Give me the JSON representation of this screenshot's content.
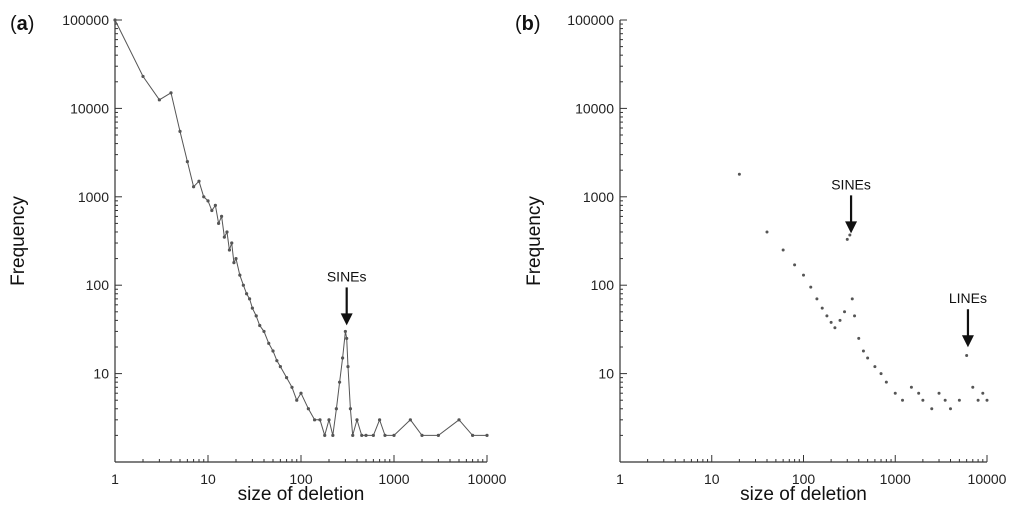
{
  "chart_data": [
    {
      "type": "line",
      "panel_label": "a",
      "xlabel": "size of deletion",
      "ylabel": "Frequency",
      "x_scale": "log",
      "y_scale": "log",
      "xlim": [
        1,
        10000
      ],
      "ylim": [
        1,
        100000
      ],
      "x_ticks": [
        1,
        10,
        100,
        1000,
        10000
      ],
      "x_tick_labels": [
        "1",
        "10",
        "100",
        "1000",
        "10000"
      ],
      "y_ticks": [
        10,
        100,
        1000,
        10000,
        100000
      ],
      "y_tick_labels": [
        "10",
        "100",
        "1000",
        "10000",
        "100000"
      ],
      "grid": false,
      "series_color": "#555555",
      "annotations": [
        {
          "text": "SINEs",
          "x": 310,
          "y": 30,
          "arrow": "down"
        }
      ],
      "series": [
        {
          "x": [
            1,
            2,
            3,
            4,
            5,
            6,
            7,
            8,
            9,
            10,
            11,
            12,
            13,
            14,
            15,
            16,
            17,
            18,
            19,
            20,
            22,
            24,
            26,
            28,
            30,
            33,
            36,
            40,
            45,
            50,
            55,
            60,
            70,
            80,
            90,
            100,
            120,
            140,
            160,
            180,
            200,
            220,
            240,
            260,
            280,
            300,
            310,
            320,
            340,
            360,
            400,
            450,
            500,
            600,
            700,
            800,
            1000,
            1500,
            2000,
            3000,
            5000,
            7000,
            10000
          ],
          "y": [
            100000,
            23000,
            12500,
            15000,
            5500,
            2500,
            1300,
            1500,
            1000,
            900,
            700,
            800,
            500,
            600,
            350,
            400,
            250,
            300,
            180,
            200,
            130,
            100,
            80,
            70,
            55,
            45,
            35,
            30,
            22,
            18,
            14,
            12,
            9,
            7,
            5,
            6,
            4,
            3,
            3,
            2,
            3,
            2,
            4,
            8,
            15,
            30,
            25,
            12,
            4,
            2,
            3,
            2,
            2,
            2,
            3,
            2,
            2,
            3,
            2,
            2,
            3,
            2,
            2
          ]
        }
      ]
    },
    {
      "type": "scatter",
      "panel_label": "b",
      "xlabel": "size of deletion",
      "ylabel": "Frequency",
      "x_scale": "log",
      "y_scale": "log",
      "xlim": [
        1,
        10000
      ],
      "ylim": [
        1,
        100000
      ],
      "x_ticks": [
        1,
        10,
        100,
        1000,
        10000
      ],
      "x_tick_labels": [
        "1",
        "10",
        "100",
        "1000",
        "10000"
      ],
      "y_ticks": [
        10,
        100,
        1000,
        10000,
        100000
      ],
      "y_tick_labels": [
        "10",
        "100",
        "1000",
        "10000",
        "100000"
      ],
      "grid": false,
      "series_color": "#555555",
      "annotations": [
        {
          "text": "SINEs",
          "x": 330,
          "y": 330,
          "arrow": "down"
        },
        {
          "text": "LINEs",
          "x": 6200,
          "y": 17,
          "arrow": "down"
        }
      ],
      "series": [
        {
          "x": [
            20,
            40,
            60,
            80,
            100,
            120,
            140,
            160,
            180,
            200,
            220,
            250,
            280,
            300,
            320,
            340,
            360,
            400,
            450,
            500,
            600,
            700,
            800,
            1000,
            1200,
            1500,
            1800,
            2000,
            2500,
            3000,
            3500,
            4000,
            5000,
            6000,
            7000,
            8000,
            9000,
            10000
          ],
          "y": [
            1800,
            400,
            250,
            170,
            130,
            95,
            70,
            55,
            45,
            38,
            33,
            40,
            50,
            330,
            370,
            70,
            45,
            25,
            18,
            15,
            12,
            10,
            8,
            6,
            5,
            7,
            6,
            5,
            4,
            6,
            5,
            4,
            5,
            16,
            7,
            5,
            6,
            5
          ]
        }
      ]
    }
  ]
}
